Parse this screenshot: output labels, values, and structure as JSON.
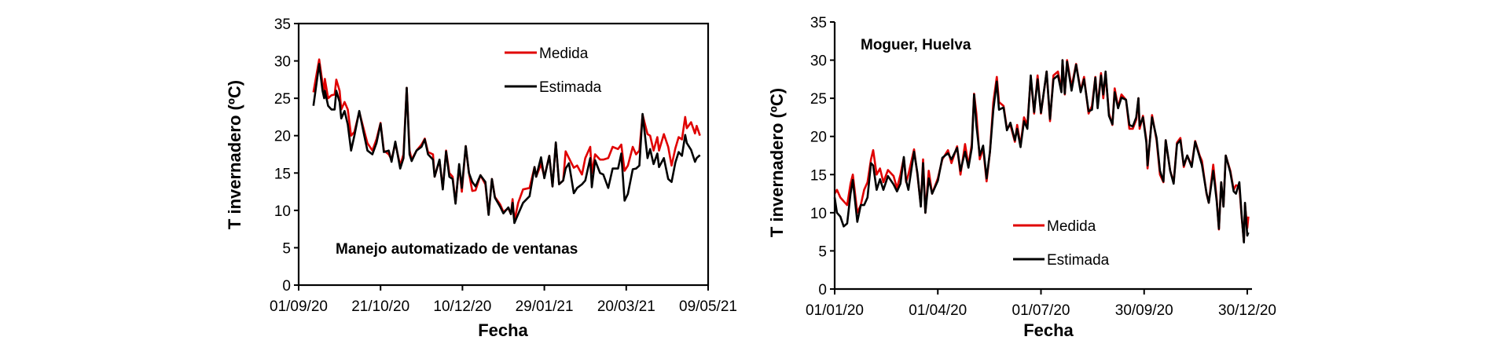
{
  "chart_data": [
    {
      "type": "line",
      "annotation": "Manejo automatizado de ventanas",
      "xlabel": "Fecha",
      "ylabel": "T invernadero (ºC)",
      "ylim": [
        0,
        35
      ],
      "yticks": [
        "0",
        "5",
        "10",
        "15",
        "20",
        "25",
        "30",
        "35"
      ],
      "x_unit": "days since 01/09/20",
      "xlim": [
        0,
        250
      ],
      "xticks": [
        {
          "day": 0,
          "label": "01/09/20"
        },
        {
          "day": 50,
          "label": "21/10/20"
        },
        {
          "day": 100,
          "label": "10/12/20"
        },
        {
          "day": 150,
          "label": "29/01/21"
        },
        {
          "day": 200,
          "label": "20/03/21"
        },
        {
          "day": 250,
          "label": "09/05/21"
        }
      ],
      "frame": "box",
      "legend": "top-right",
      "x": [
        9,
        12.5,
        14.6,
        15.6,
        16,
        18,
        20,
        22,
        23,
        25,
        26,
        28,
        30,
        32,
        34,
        37,
        39.6,
        42,
        45,
        47.5,
        50,
        52,
        55,
        56.7,
        59,
        62,
        64,
        66,
        67.7,
        69,
        72,
        75,
        77,
        79,
        82,
        83,
        86,
        88,
        90,
        92,
        94,
        95.8,
        98,
        99.6,
        102,
        104,
        106,
        108,
        111,
        114,
        116,
        118,
        119.8,
        123,
        125,
        128,
        129.6,
        130.6,
        131.7,
        134,
        137,
        141,
        144,
        145,
        148,
        150,
        153,
        155,
        157,
        159,
        161.5,
        163,
        165,
        168,
        170,
        173,
        175,
        178,
        179,
        181,
        184,
        186,
        189,
        191.7,
        195,
        197,
        199,
        201,
        204,
        206,
        208,
        210,
        213,
        214.6,
        216.7,
        219,
        220,
        223,
        225.6,
        227.7,
        230,
        232,
        234,
        236,
        237,
        239.6,
        242,
        243,
        245
      ],
      "series": [
        {
          "name": "Medida",
          "color": "#e00000",
          "values": [
            25.8,
            30.2,
            27,
            25.5,
            27.6,
            25,
            25.4,
            25.5,
            27.5,
            26,
            23.5,
            24.5,
            23.5,
            20,
            20.5,
            23.2,
            21,
            19,
            18,
            19.5,
            21.7,
            18,
            17.5,
            16.8,
            19,
            16,
            17.5,
            26.4,
            18,
            16.8,
            18,
            18.8,
            19.6,
            17.8,
            17.5,
            14.5,
            16.7,
            13,
            18,
            15,
            14.5,
            11,
            16,
            12.5,
            18.6,
            15,
            12.6,
            12.7,
            14.7,
            13.5,
            9.5,
            14.2,
            11.8,
            10.8,
            9.8,
            10.3,
            9.5,
            11.5,
            8.6,
            11,
            12.8,
            13,
            15.8,
            14.5,
            16.2,
            14.5,
            17.3,
            13.2,
            19,
            13.5,
            14,
            17.9,
            17,
            15.7,
            16,
            14.8,
            17,
            18.5,
            15,
            17.5,
            16.8,
            16.8,
            17,
            18.5,
            18.2,
            18.8,
            15.3,
            16,
            18.5,
            17.5,
            18,
            22.8,
            20.2,
            20,
            18,
            19.8,
            18,
            20.2,
            18.5,
            16,
            18.3,
            19.8,
            19.5,
            22.5,
            21,
            21.8,
            20.3,
            21.3,
            20
          ]
        },
        {
          "name": "Estimada",
          "color": "#000000",
          "values": [
            24,
            29.6,
            26,
            25,
            26,
            24,
            23.5,
            23.5,
            26,
            24.5,
            22.3,
            23.3,
            21.5,
            18,
            20,
            23.3,
            20.5,
            18,
            17.5,
            19,
            21.6,
            17.8,
            18,
            16.5,
            19.2,
            15.6,
            17,
            26.4,
            17.5,
            16.6,
            18,
            18.5,
            19.5,
            17.5,
            16.8,
            14.5,
            16.8,
            12.8,
            17.9,
            14.5,
            14.2,
            10.9,
            16.2,
            13,
            18.6,
            15,
            13.8,
            13.2,
            14.7,
            13.8,
            9.4,
            14.2,
            11.7,
            10.5,
            9.6,
            10.4,
            9.5,
            11,
            8.3,
            9.5,
            11,
            11.9,
            15.8,
            14.5,
            17.1,
            14.3,
            17.3,
            13.2,
            19.1,
            13.5,
            14,
            15.6,
            16.3,
            12.3,
            13,
            13.5,
            14,
            17,
            13.1,
            16.7,
            15,
            14.8,
            13,
            15.6,
            15.6,
            17.6,
            11.3,
            12.2,
            15.5,
            15.6,
            16,
            22.9,
            17,
            18.2,
            16.2,
            17.6,
            15.8,
            17,
            14.2,
            13.8,
            16.4,
            17.8,
            17.3,
            20.1,
            19,
            18.1,
            16.5,
            17,
            17.4
          ]
        }
      ]
    },
    {
      "type": "line",
      "annotation": "Moguer, Huelva",
      "xlabel": "Fecha",
      "ylabel": "T invernadero (ºC)",
      "ylim": [
        0,
        35
      ],
      "yticks": [
        "0",
        "5",
        "10",
        "15",
        "20",
        "25",
        "30",
        "35"
      ],
      "x_unit": "days since 01/01/20",
      "xlim": [
        0,
        368
      ],
      "xticks": [
        {
          "day": 0,
          "label": "01/01/20"
        },
        {
          "day": 91,
          "label": "01/04/20"
        },
        {
          "day": 182,
          "label": "01/07/20"
        },
        {
          "day": 273,
          "label": "30/09/20"
        },
        {
          "day": 364,
          "label": "30/12/20"
        }
      ],
      "frame": "axes",
      "legend": "bottom-right",
      "x": [
        0,
        2,
        5,
        8,
        11,
        14,
        16,
        20,
        23,
        26,
        29,
        32,
        34,
        37,
        40,
        43,
        47,
        52,
        55,
        58,
        61,
        63,
        65,
        70,
        73,
        76,
        78,
        80,
        83,
        86,
        91,
        95,
        100,
        103,
        108,
        111,
        115,
        118,
        121,
        123,
        125,
        128,
        131,
        134,
        137,
        140,
        143,
        145,
        149,
        152,
        155,
        159,
        161,
        164,
        167,
        170,
        173,
        176,
        179,
        182,
        187,
        190,
        193,
        197,
        200,
        201,
        203,
        205,
        209,
        213,
        217,
        220,
        224,
        227,
        230,
        232,
        235,
        237,
        239,
        242,
        245,
        247,
        250,
        253,
        257,
        260,
        263,
        266,
        268,
        269,
        272,
        275,
        276,
        280,
        284,
        287,
        290,
        292,
        296,
        299,
        302,
        305,
        308,
        311,
        315,
        318,
        322,
        324,
        328,
        330,
        334,
        337,
        339,
        341,
        343,
        345,
        349,
        352,
        354,
        357,
        359,
        361,
        362,
        364,
        365
      ],
      "series": [
        {
          "name": "Medida",
          "color": "#e00000",
          "values": [
            12.5,
            13,
            12,
            11.5,
            11,
            13.8,
            15,
            10,
            11,
            13,
            14,
            17,
            18.2,
            15,
            15.8,
            14,
            15.6,
            14.8,
            13.2,
            15,
            17.2,
            14,
            15,
            18.3,
            15,
            11,
            17,
            10,
            15.5,
            12.5,
            14.5,
            17,
            18.2,
            16.5,
            18.7,
            15,
            19,
            16.2,
            19,
            25.6,
            23,
            17,
            18.5,
            14.1,
            18,
            24.5,
            27.8,
            24.5,
            24,
            21,
            21.5,
            19.3,
            21.5,
            18.8,
            22.5,
            21.5,
            27.8,
            23,
            28,
            23,
            28.5,
            22,
            28,
            28.5,
            26,
            30,
            25.5,
            30,
            26.5,
            29.5,
            26,
            27.8,
            23,
            24,
            27.8,
            24,
            28.3,
            25,
            28.3,
            23,
            21.5,
            26.3,
            23.8,
            25.5,
            24.8,
            21,
            21,
            22.2,
            25,
            21,
            22.7,
            19.5,
            15.8,
            22.8,
            19.5,
            15,
            14,
            19.5,
            15.5,
            14,
            19.2,
            19.8,
            16,
            17.5,
            16.2,
            19.4,
            17.5,
            16.8,
            12.5,
            11.3,
            16.3,
            11.8,
            7.8,
            14,
            10.8,
            17.5,
            15.5,
            13,
            13.6,
            13.5,
            9.5,
            6.2,
            11,
            8,
            9.5
          ]
        },
        {
          "name": "Estimada",
          "color": "#000000",
          "values": [
            12,
            10,
            9.5,
            8.2,
            8.6,
            12.5,
            14.3,
            8.8,
            11,
            11,
            12,
            16.5,
            16.2,
            13,
            14.4,
            13,
            14.8,
            13.7,
            12.8,
            13.8,
            17.3,
            14.2,
            13,
            18,
            15.2,
            10.8,
            16.5,
            10,
            14.5,
            12.5,
            14.2,
            17.2,
            17.8,
            17,
            18.5,
            15.5,
            18,
            15.9,
            18.5,
            25.5,
            21.5,
            17.5,
            18.8,
            14.5,
            18,
            23.5,
            27.2,
            23.5,
            23.8,
            20.8,
            21.8,
            19.5,
            21,
            18.6,
            22,
            21,
            28,
            23.2,
            27.5,
            23.1,
            28.5,
            22.3,
            27.5,
            28,
            25.8,
            30,
            25.6,
            29.8,
            26,
            29.4,
            25.8,
            27.5,
            23.3,
            23.5,
            27.7,
            23.7,
            28,
            25.5,
            28.5,
            22.7,
            21.6,
            25.8,
            23.7,
            25.1,
            24.8,
            21.5,
            21.3,
            22.5,
            25,
            21.4,
            22.5,
            19.2,
            16.2,
            22.5,
            19.8,
            15.5,
            14.1,
            19.5,
            15.5,
            13.8,
            19,
            19.5,
            16.2,
            17.5,
            16,
            19.3,
            17.3,
            16.3,
            12.6,
            11.3,
            15.5,
            11.5,
            7.9,
            14,
            10.8,
            17.5,
            15.3,
            12.8,
            12.5,
            14,
            9.7,
            6.1,
            11.3,
            7,
            7.4
          ]
        }
      ]
    }
  ]
}
